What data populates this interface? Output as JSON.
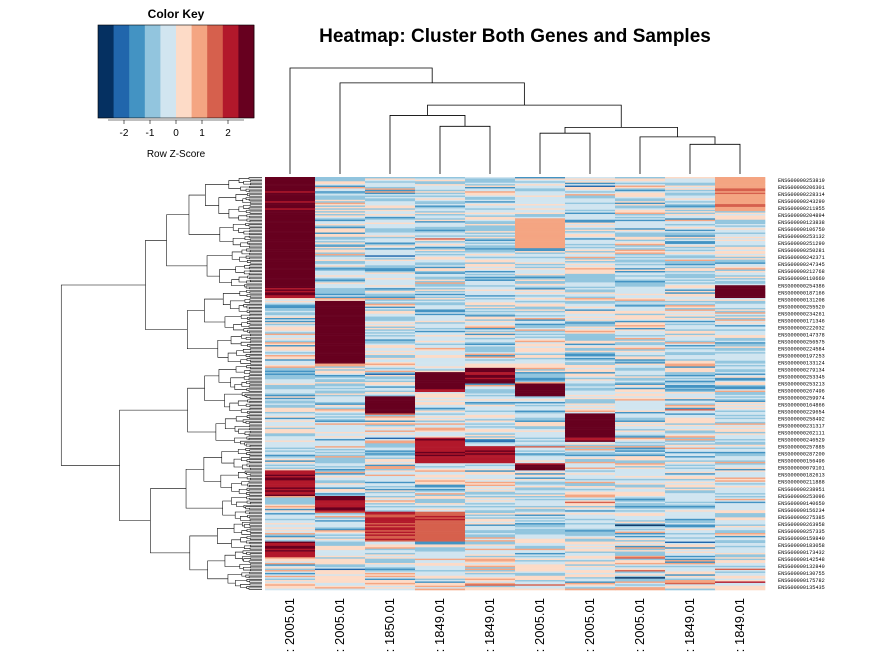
{
  "chart_data": {
    "type": "heatmap",
    "title": "Heatmap: Cluster Both Genes and Samples",
    "color_key": {
      "title": "Color Key",
      "xlabel": "Row Z-Score",
      "ticks": [
        -2,
        -1,
        0,
        1,
        2
      ],
      "range": [
        -3,
        3
      ],
      "colors": [
        "#053061",
        "#2166ac",
        "#4393c3",
        "#92c5de",
        "#d1e5f0",
        "#fddbc7",
        "#f4a582",
        "#d6604d",
        "#b2182b",
        "#67001f"
      ]
    },
    "columns": [
      ": 2005.01",
      ": 2005.01",
      ": 1850.01",
      ": 1849.01",
      ": 1849.01",
      ": 2005.01",
      ": 2005.01",
      ": 2005.01",
      ": 1849.01",
      ": 1849.01"
    ],
    "row_labels": [
      "ENSG00000253819",
      "ENSG00000206301",
      "ENSG00000228314",
      "ENSG00000243290",
      "ENSG00000211955",
      "ENSG00000204894",
      "ENSG00000123838",
      "ENSG00000106750",
      "ENSG00000253132",
      "ENSG00000251290",
      "ENSG00000250281",
      "ENSG00000242371",
      "ENSG00000247345",
      "ENSG00000212768",
      "ENSG00000110660",
      "ENSG00000254386",
      "ENSG00000187166",
      "ENSG00000131208",
      "ENSG00000255520",
      "ENSG00000234261",
      "ENSG00000171346",
      "ENSG00000222032",
      "ENSG00000147378",
      "ENSG00000256575",
      "ENSG00000224584",
      "ENSG00000197253",
      "ENSG00000133124",
      "ENSG00000279134",
      "ENSG00000253345",
      "ENSG00000253213",
      "ENSG00000267496",
      "ENSG00000259974",
      "ENSG00000164866",
      "ENSG00000229654",
      "ENSG00000258492",
      "ENSG00000231317",
      "ENSG00000202111",
      "ENSG00000246529",
      "ENSG00000257885",
      "ENSG00000287200",
      "ENSG00000156496",
      "ENSG00000079101",
      "ENSG00000182613",
      "ENSG00000211888",
      "ENSG00000238951",
      "ENSG00000253096",
      "ENSG00000140650",
      "ENSG00000156234",
      "ENSG00000275385",
      "ENSG00000263958",
      "ENSG00000257335",
      "ENSG00000159840",
      "ENSG00000183058",
      "ENSG00000173432",
      "ENSG00000142548",
      "ENSG00000132840",
      "ENSG00000130755",
      "ENSG00000175782",
      "ENSG00000135435"
    ],
    "n_genes": 290,
    "block_structure": [
      {
        "rows": [
          0.0,
          0.29
        ],
        "column": 0,
        "level": 2.9
      },
      {
        "rows": [
          0.3,
          0.45
        ],
        "column": 1,
        "level": 2.9
      },
      {
        "rows": [
          0.46,
          0.5
        ],
        "column": 4,
        "level": 2.7
      },
      {
        "rows": [
          0.47,
          0.52
        ],
        "column": 3,
        "level": 2.8
      },
      {
        "rows": [
          0.5,
          0.53
        ],
        "column": 5,
        "level": 2.9
      },
      {
        "rows": [
          0.53,
          0.57
        ],
        "column": 2,
        "level": 2.9
      },
      {
        "rows": [
          0.57,
          0.64
        ],
        "column": 6,
        "level": 2.9
      },
      {
        "rows": [
          0.63,
          0.69
        ],
        "column": 3,
        "level": 2.4
      },
      {
        "rows": [
          0.65,
          0.69
        ],
        "column": 4,
        "level": 2.2
      },
      {
        "rows": [
          0.69,
          0.71
        ],
        "column": 5,
        "level": 2.6
      },
      {
        "rows": [
          0.71,
          0.77
        ],
        "column": 0,
        "level": 2.3
      },
      {
        "rows": [
          0.77,
          0.81
        ],
        "column": 1,
        "level": 2.4
      },
      {
        "rows": [
          0.81,
          0.88
        ],
        "column": 2,
        "level": 2.0
      },
      {
        "rows": [
          0.81,
          0.88
        ],
        "column": 3,
        "level": 1.6
      },
      {
        "rows": [
          0.88,
          0.92
        ],
        "column": 0,
        "level": 2.3
      },
      {
        "rows": [
          0.26,
          0.29
        ],
        "column": 9,
        "level": 2.7
      },
      {
        "rows": [
          0.1,
          0.17
        ],
        "column": 5,
        "level": 1.0
      },
      {
        "rows": [
          0.0,
          0.08
        ],
        "column": 9,
        "level": 1.1
      }
    ],
    "column_dendrogram": [
      {
        "left": 0,
        "right": 1,
        "height": 1.0
      },
      {
        "left": 2,
        "right": 3,
        "height": 0.65
      },
      {
        "left": 3,
        "right": 4,
        "height": 0.45
      },
      {
        "left": 5,
        "right": 6,
        "height": 0.55
      },
      {
        "left": 7,
        "right": 8,
        "height": 0.35
      },
      {
        "left": 8,
        "right": 9,
        "height": 0.28
      }
    ],
    "dendrograms": {
      "rows": true,
      "columns": true
    }
  }
}
